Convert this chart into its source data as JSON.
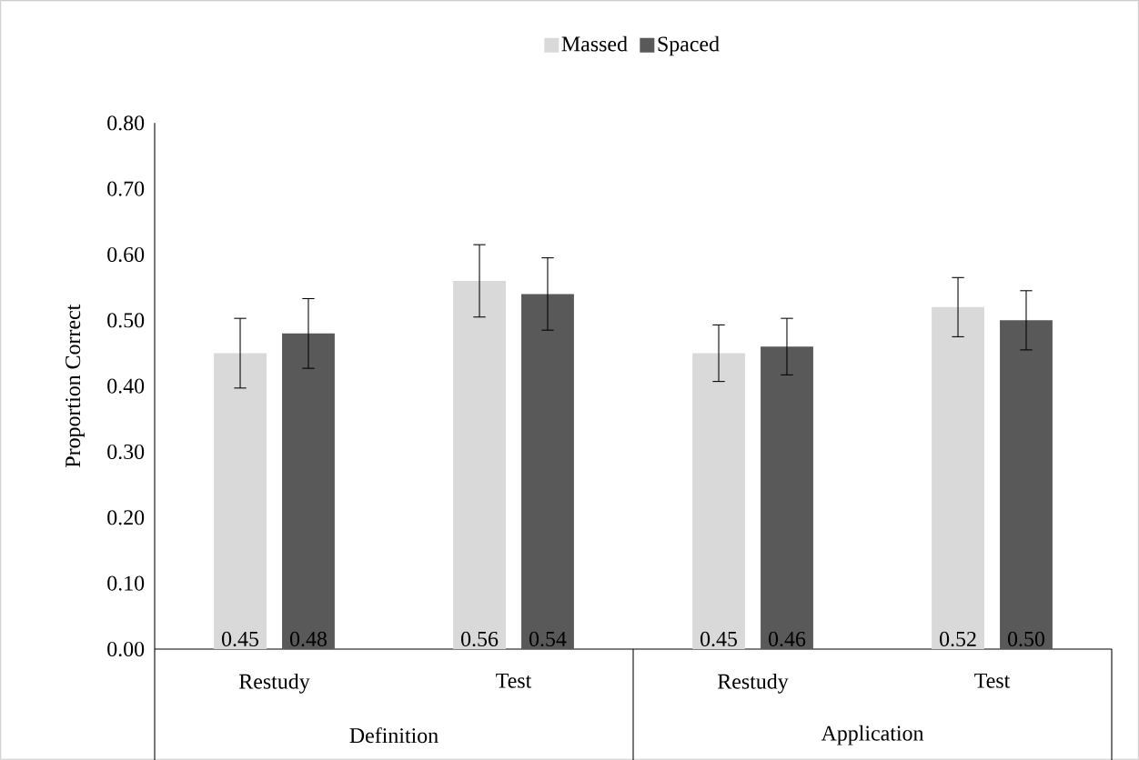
{
  "chart_data": {
    "type": "bar",
    "categories": [
      "Restudy",
      "Test",
      "Restudy",
      "Test"
    ],
    "series": [
      {
        "name": "Massed",
        "color": "#d9d9d9",
        "values": [
          0.45,
          0.56,
          0.45,
          0.52
        ],
        "errors": [
          0.053,
          0.055,
          0.043,
          0.045
        ],
        "value_labels": [
          "0.45",
          "0.56",
          "0.45",
          "0.52"
        ]
      },
      {
        "name": "Spaced",
        "color": "#595959",
        "values": [
          0.48,
          0.54,
          0.46,
          0.5
        ],
        "errors": [
          0.053,
          0.055,
          0.043,
          0.045
        ],
        "value_labels": [
          "0.48",
          "0.54",
          "0.46",
          "0.50"
        ]
      }
    ],
    "ylabel": "Proportion Correct",
    "ylim": [
      0,
      0.8
    ],
    "yticks": [
      {
        "value": 0,
        "label": "0.00"
      },
      {
        "value": 0.1,
        "label": "0.10"
      },
      {
        "value": 0.2,
        "label": "0.20"
      },
      {
        "value": 0.3,
        "label": "0.30"
      },
      {
        "value": 0.4,
        "label": "0.40"
      },
      {
        "value": 0.5,
        "label": "0.50"
      },
      {
        "value": 0.6,
        "label": "0.60"
      },
      {
        "value": 0.7,
        "label": "0.70"
      },
      {
        "value": 0.8,
        "label": "0.80"
      }
    ],
    "annotations": [
      "Definition",
      "Application"
    ],
    "legend": "top"
  }
}
